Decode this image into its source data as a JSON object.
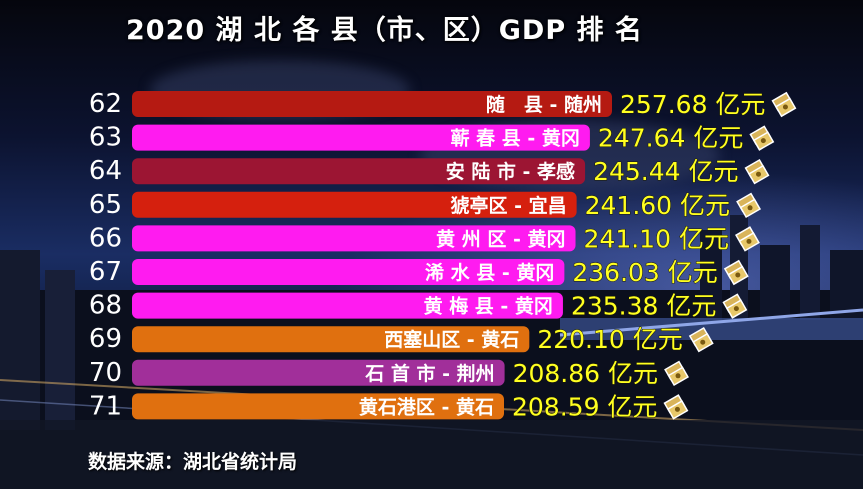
{
  "title": "2020 湖 北 各 县（市、区）GDP 排 名",
  "source": "数据来源：湖北省统计局",
  "icon": "money-icon",
  "chart_data": {
    "type": "bar",
    "orientation": "horizontal",
    "title": "2020 湖 北 各 县（市、区）GDP 排 名",
    "unit": "亿元",
    "xlim": [
      0,
      257.68
    ],
    "ranks": [
      "62",
      "63",
      "64",
      "65",
      "66",
      "67",
      "68",
      "69",
      "70",
      "71"
    ],
    "categories": [
      "随　县 - 随州",
      "蕲 春 县 - 黄冈",
      "安 陆 市 - 孝感",
      "猇亭区 - 宜昌",
      "黄 州 区 - 黄冈",
      "浠 水 县 - 黄冈",
      "黄 梅 县 - 黄冈",
      "西塞山区 - 黄石",
      "石 首 市 - 荆州",
      "黄石港区 - 黄石"
    ],
    "values": [
      257.68,
      247.64,
      245.44,
      241.6,
      241.1,
      236.03,
      235.38,
      220.1,
      208.86,
      208.59
    ],
    "value_labels": [
      "257.68 亿元",
      "247.64 亿元",
      "245.44 亿元",
      "241.60 亿元",
      "241.10 亿元",
      "236.03 亿元",
      "235.38 亿元",
      "220.10 亿元",
      "208.86 亿元",
      "208.59 亿元"
    ],
    "colors": [
      "#b51a12",
      "#ff1bf0",
      "#9c1533",
      "#d5200e",
      "#ff1bf0",
      "#ff1bf0",
      "#ff1bf0",
      "#e0700f",
      "#a12f9a",
      "#e0700f"
    ]
  }
}
